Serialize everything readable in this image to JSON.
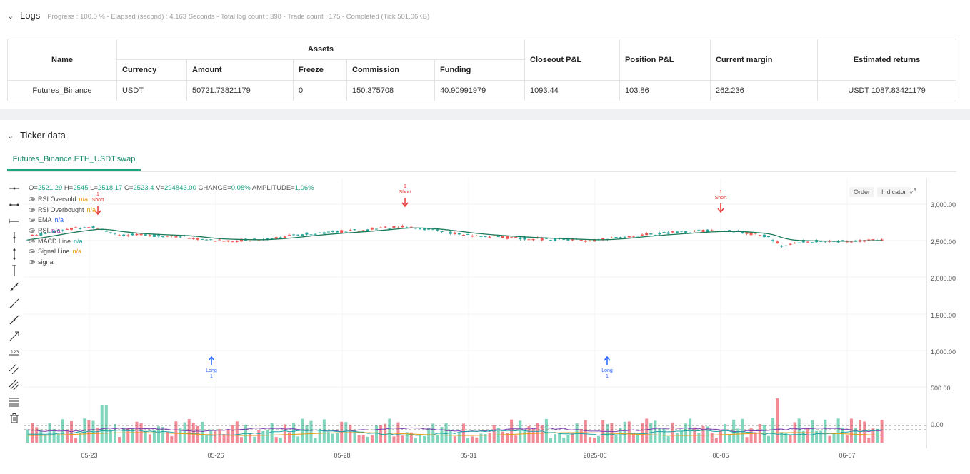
{
  "logs": {
    "title": "Logs",
    "progress": "Progress : 100.0 % - Elapsed (second) : 4.163 Seconds - Total log count : 398 - Trade count : 175 - Completed (Tick 501.06KB)"
  },
  "assets_table": {
    "headers": {
      "name": "Name",
      "assets": "Assets",
      "currency": "Currency",
      "amount": "Amount",
      "freeze": "Freeze",
      "commission": "Commission",
      "funding": "Funding",
      "closeout_pnl": "Closeout P&L",
      "position_pnl": "Position P&L",
      "current_margin": "Current margin",
      "estimated_returns": "Estimated returns"
    },
    "row": {
      "name": "Futures_Binance",
      "currency": "USDT",
      "amount": "50721.73821179",
      "freeze": "0",
      "commission": "150.375708",
      "funding": "40.90991979",
      "closeout_pnl": "1093.44",
      "position_pnl": "103.86",
      "current_margin": "262.236",
      "estimated_returns": "USDT 1087.83421179"
    }
  },
  "ticker": {
    "title": "Ticker data",
    "tab_label": "Futures_Binance.ETH_USDT.swap",
    "ohlc": {
      "o_label": "O=",
      "o": "2521.29",
      "h_label": "H=",
      "h": "2545",
      "l_label": "L=",
      "l": "2518.17",
      "c_label": "C=",
      "c": "2523.4",
      "v_label": "V=",
      "v": "294843.00",
      "change_label": "CHANGE=",
      "change": "0.08%",
      "amp_label": "AMPLITUDE=",
      "amp": "1.06%"
    },
    "legend": [
      {
        "label": "RSI Oversold",
        "value": "n/a",
        "color": "#e69a0f"
      },
      {
        "label": "RSI Overbought",
        "value": "n/a",
        "color": "#e69a0f"
      },
      {
        "label": "EMA",
        "value": "n/a",
        "color": "#2962ff"
      },
      {
        "label": "RSI",
        "value": "n/a",
        "color": "#9c27b0"
      },
      {
        "label": "MACD Line",
        "value": "n/a",
        "color": "#1ea3a3"
      },
      {
        "label": "Signal Line",
        "value": "n/a",
        "color": "#e69a0f"
      },
      {
        "label": "signal",
        "value": "",
        "color": "#444444"
      }
    ],
    "buttons": {
      "order": "Order",
      "indicator": "Indicator"
    },
    "y_ticks": [
      "3,000.00",
      "2,500.00",
      "2,000.00",
      "1,500.00",
      "1,000.00",
      "500.00",
      "0.00"
    ],
    "x_ticks": [
      "05-23",
      "05-26",
      "05-28",
      "05-31",
      "2025-06",
      "06-05",
      "06-07"
    ],
    "signals": [
      {
        "type": "Short",
        "count": "1"
      },
      {
        "type": "Long",
        "count": "1"
      },
      {
        "type": "Short",
        "count": "1"
      },
      {
        "type": "Long",
        "count": "1"
      },
      {
        "type": "Short",
        "count": "1"
      }
    ],
    "colors": {
      "up": "#26a69a",
      "down": "#ef5350",
      "ema": "#1b7a5a",
      "long": "#2962ff",
      "short": "#e53935"
    }
  }
}
